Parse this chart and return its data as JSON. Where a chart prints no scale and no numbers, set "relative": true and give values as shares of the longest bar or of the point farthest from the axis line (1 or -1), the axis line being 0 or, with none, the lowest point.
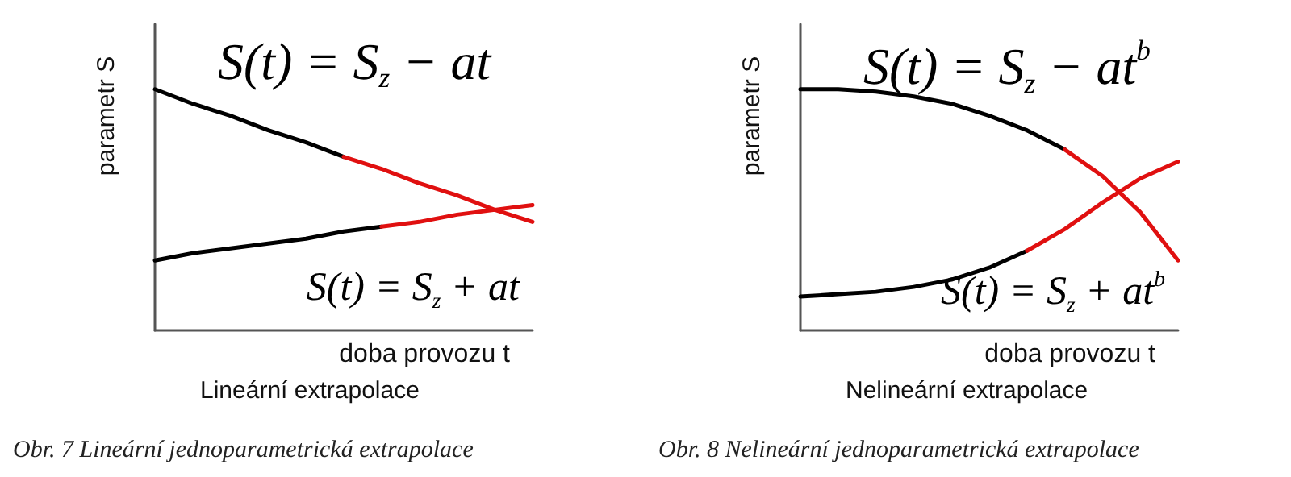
{
  "chart_data": [
    {
      "type": "line",
      "relative": true,
      "title": "Lineární extrapolace",
      "xlabel": "doba provozu t",
      "ylabel": "parametr S",
      "marker": "none",
      "line_style": "solid",
      "categories": [
        null,
        null,
        null,
        null,
        null,
        null,
        null,
        null,
        null,
        null,
        null
      ],
      "annotations": [
        "S(t) = S$_{z}$ − at",
        "S(t) = S$_{z}$ + at",
        "Obr. 7 Lineární jednoparametrická extrapolace"
      ],
      "series": [
        {
          "color": "#000000",
          "values": [
            1,
            0.94,
            0.89,
            0.83,
            0.78,
            0.72,
            null,
            null,
            null,
            null,
            null
          ]
        },
        {
          "color": "#e01010",
          "values": [
            null,
            null,
            null,
            null,
            null,
            0.72,
            0.67,
            0.61,
            0.56,
            0.5,
            0.45
          ]
        },
        {
          "color": "#000000",
          "values": [
            0.29,
            0.32,
            0.34,
            0.36,
            0.38,
            0.41,
            0.43,
            null,
            null,
            null,
            null
          ]
        },
        {
          "color": "#e01010",
          "values": [
            null,
            null,
            null,
            null,
            null,
            null,
            0.43,
            0.45,
            0.48,
            0.5,
            0.52
          ]
        }
      ]
    },
    {
      "type": "line",
      "relative": true,
      "title": "Nelineární extrapolace",
      "xlabel": "doba provozu t",
      "ylabel": "parametr S",
      "marker": "none",
      "line_style": "solid",
      "categories": [
        null,
        null,
        null,
        null,
        null,
        null,
        null,
        null,
        null,
        null,
        null
      ],
      "annotations": [
        "S(t) = S$_{z}$ − at$^{b}$",
        "S(t) = S$_{z}$ + at$^{b}$",
        "Obr. 8 Nelineární jednoparametrická extrapolace"
      ],
      "series": [
        {
          "color": "#000000",
          "values": [
            1,
            1,
            0.99,
            0.97,
            0.94,
            0.89,
            0.83,
            0.75,
            null,
            null,
            null
          ]
        },
        {
          "color": "#e01010",
          "values": [
            null,
            null,
            null,
            null,
            null,
            null,
            null,
            0.75,
            0.64,
            0.49,
            0.29
          ]
        },
        {
          "color": "#000000",
          "values": [
            0.14,
            0.15,
            0.16,
            0.18,
            0.21,
            0.26,
            0.33,
            null,
            null,
            null,
            null
          ]
        },
        {
          "color": "#e01010",
          "values": [
            null,
            null,
            null,
            null,
            null,
            null,
            0.33,
            0.42,
            0.53,
            0.63,
            0.7
          ]
        }
      ]
    }
  ]
}
